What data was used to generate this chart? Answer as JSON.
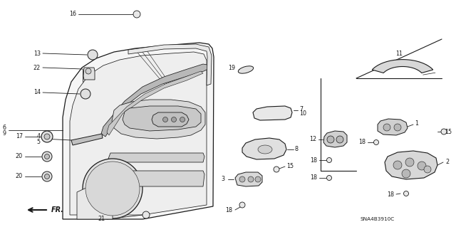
{
  "bg_color": "#ffffff",
  "line_color": "#1a1a1a",
  "text_color": "#1a1a1a",
  "figsize": [
    6.4,
    3.19
  ],
  "dpi": 100,
  "diagram_code": "SNA4B3910C"
}
